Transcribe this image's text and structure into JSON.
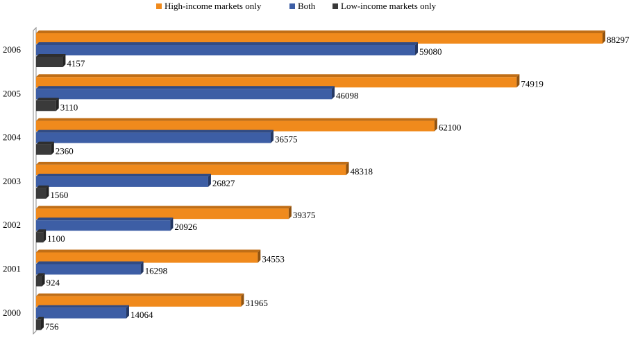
{
  "chart_data": {
    "type": "bar",
    "orientation": "horizontal",
    "style": "3d",
    "categories": [
      "2000",
      "2001",
      "2002",
      "2003",
      "2004",
      "2005",
      "2006"
    ],
    "series": [
      {
        "name": "High-income markets only",
        "color": "#f08a1c",
        "values": [
          31965,
          34553,
          39375,
          48318,
          62100,
          74919,
          88297
        ]
      },
      {
        "name": "Both",
        "color": "#3d5ea5",
        "values": [
          14064,
          16298,
          20926,
          26827,
          36575,
          46098,
          59080
        ]
      },
      {
        "name": "Low-income markets only",
        "color": "#3a3a3a",
        "values": [
          756,
          924,
          1100,
          1560,
          2360,
          3110,
          4157
        ]
      }
    ],
    "title": "",
    "xlabel": "",
    "ylabel": "",
    "xlim": [
      0,
      90000
    ],
    "grid": false,
    "legend_position": "top-center"
  }
}
